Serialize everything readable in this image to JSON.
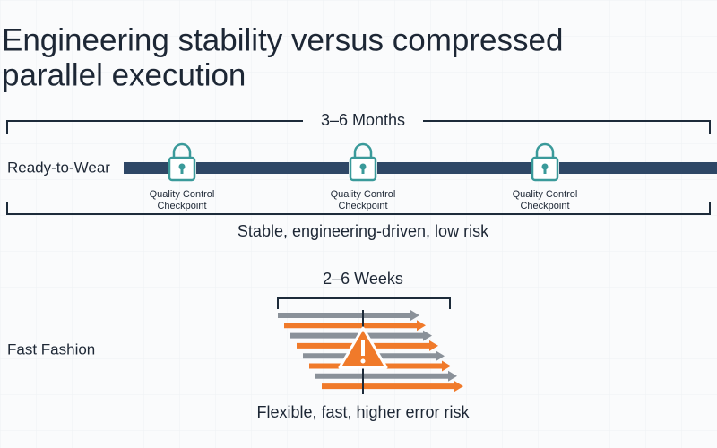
{
  "title": {
    "line1": "Engineering stability versus compressed",
    "line2": "parallel execution"
  },
  "ready_to_wear": {
    "label": "Ready-to-Wear",
    "duration": "3–6 Months",
    "checkpoints": [
      [
        "Quality Control",
        "Checkpoint"
      ],
      [
        "Quality Control",
        "Checkpoint"
      ],
      [
        "Quality Control",
        "Checkpoint"
      ]
    ],
    "caption": "Stable, engineering-driven, low risk"
  },
  "fast_fashion": {
    "label": "Fast Fashion",
    "duration": "2–6 Weeks",
    "caption": "Flexible, fast, higher error risk"
  }
}
